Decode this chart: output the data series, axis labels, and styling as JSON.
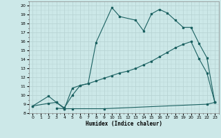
{
  "xlabel": "Humidex (Indice chaleur)",
  "bg_color": "#cce8e8",
  "line_color": "#1a6060",
  "grid_color": "#b0d0d0",
  "xlim": [
    -0.5,
    23.5
  ],
  "ylim": [
    8,
    20.5
  ],
  "xticks": [
    0,
    1,
    2,
    3,
    4,
    5,
    6,
    7,
    8,
    9,
    10,
    11,
    12,
    13,
    14,
    15,
    16,
    17,
    18,
    19,
    20,
    21,
    22,
    23
  ],
  "yticks": [
    8,
    9,
    10,
    11,
    12,
    13,
    14,
    15,
    16,
    17,
    18,
    19,
    20
  ],
  "line1_x": [
    0,
    2,
    3,
    4,
    5,
    6,
    7,
    8,
    10,
    11,
    13,
    14,
    15,
    16,
    17,
    18,
    19,
    20,
    21,
    22,
    23
  ],
  "line1_y": [
    8.8,
    9.9,
    9.2,
    8.6,
    10.0,
    11.1,
    11.3,
    15.9,
    19.8,
    18.8,
    18.4,
    17.2,
    19.1,
    19.6,
    19.2,
    18.4,
    17.6,
    17.6,
    15.8,
    14.2,
    9.2
  ],
  "line2_x": [
    0,
    2,
    3,
    4,
    5,
    6,
    7,
    8,
    9,
    10,
    11,
    12,
    13,
    14,
    15,
    16,
    17,
    18,
    19,
    20,
    21,
    22,
    23
  ],
  "line2_y": [
    8.8,
    9.1,
    9.2,
    8.5,
    10.8,
    11.1,
    11.3,
    11.6,
    11.9,
    12.2,
    12.5,
    12.7,
    13.0,
    13.4,
    13.8,
    14.3,
    14.8,
    15.3,
    15.7,
    16.0,
    14.1,
    12.5,
    9.2
  ],
  "line3_x": [
    3,
    4,
    5,
    9,
    22,
    23
  ],
  "line3_y": [
    8.55,
    8.5,
    8.5,
    8.5,
    9.0,
    9.2
  ]
}
